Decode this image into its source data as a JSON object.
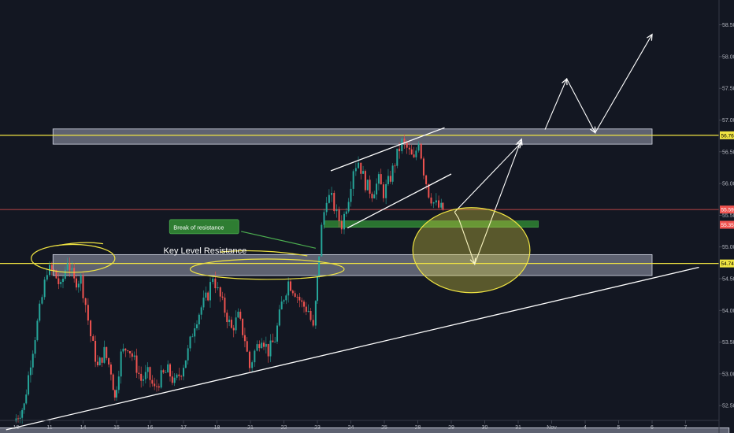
{
  "chart_data": {
    "type": "candlestick",
    "title": "",
    "xlabel": "",
    "ylabel": "",
    "ylim": [
      52.0,
      58.8
    ],
    "grid": false,
    "x_ticks": [
      "10",
      "11",
      "14",
      "15",
      "16",
      "17",
      "18",
      "21",
      "22",
      "23",
      "24",
      "25",
      "28",
      "29",
      "30",
      "31",
      "Nov",
      "4",
      "5",
      "6",
      "7"
    ],
    "x_tick_days": [
      -0.5,
      0.5,
      1.5,
      2.5,
      3.5,
      4.5,
      5.5,
      6.5,
      7.5,
      8.5,
      9.5,
      10.5,
      11.5,
      12.5,
      13.5,
      14.5,
      15.5,
      16.5,
      17.5,
      18.5,
      19.5
    ],
    "y_ticks": [
      52.0,
      52.5,
      53.0,
      53.5,
      54.0,
      54.5,
      55.0,
      55.5,
      56.0,
      56.5,
      57.0,
      57.5,
      58.0,
      58.5
    ],
    "y_tick_labels": [
      "52.00",
      "52.50",
      "53.00",
      "53.50",
      "54.00",
      "54.50",
      "55.00",
      "55.50",
      "56.00",
      "56.50",
      "57.00",
      "57.50",
      "58.00",
      "58.50"
    ],
    "price_labels": [
      {
        "value": 56.76,
        "text": "56.76",
        "bg": "#f0e442",
        "color": "#000000"
      },
      {
        "value": 55.59,
        "text": "55.59",
        "bg": "#ef5350",
        "color": "#ffffff"
      },
      {
        "value": 55.35,
        "text": "55.35",
        "bg": "#ef5350",
        "color": "#ffffff"
      },
      {
        "value": 54.74,
        "text": "54.74",
        "bg": "#f0e442",
        "color": "#000000"
      }
    ],
    "closes": [
      {
        "day": -0.5,
        "close": 52.25
      },
      {
        "day": -0.2,
        "close": 52.5
      },
      {
        "day": 0.0,
        "close": 53.2
      },
      {
        "day": 0.2,
        "close": 53.8
      },
      {
        "day": 0.35,
        "close": 54.2
      },
      {
        "day": 0.5,
        "close": 54.65
      },
      {
        "day": 0.7,
        "close": 54.6
      },
      {
        "day": 0.9,
        "close": 54.35
      },
      {
        "day": 1.1,
        "close": 54.8
      },
      {
        "day": 1.3,
        "close": 54.45
      },
      {
        "day": 1.5,
        "close": 54.5
      },
      {
        "day": 1.65,
        "close": 54.1
      },
      {
        "day": 1.8,
        "close": 53.6
      },
      {
        "day": 2.0,
        "close": 53.1
      },
      {
        "day": 2.2,
        "close": 53.35
      },
      {
        "day": 2.4,
        "close": 53.05
      },
      {
        "day": 2.5,
        "close": 52.6
      },
      {
        "day": 2.7,
        "close": 53.3
      },
      {
        "day": 2.9,
        "close": 53.45
      },
      {
        "day": 3.1,
        "close": 53.2
      },
      {
        "day": 3.3,
        "close": 52.9
      },
      {
        "day": 3.5,
        "close": 53.0
      },
      {
        "day": 3.7,
        "close": 52.75
      },
      {
        "day": 3.9,
        "close": 52.95
      },
      {
        "day": 4.1,
        "close": 53.05
      },
      {
        "day": 4.3,
        "close": 52.85
      },
      {
        "day": 4.5,
        "close": 53.05
      },
      {
        "day": 4.7,
        "close": 53.35
      },
      {
        "day": 4.9,
        "close": 53.8
      },
      {
        "day": 5.1,
        "close": 54.05
      },
      {
        "day": 5.3,
        "close": 54.25
      },
      {
        "day": 5.45,
        "close": 54.55
      },
      {
        "day": 5.6,
        "close": 54.3
      },
      {
        "day": 5.8,
        "close": 54.0
      },
      {
        "day": 6.0,
        "close": 53.7
      },
      {
        "day": 6.2,
        "close": 53.9
      },
      {
        "day": 6.4,
        "close": 53.55
      },
      {
        "day": 6.55,
        "close": 53.1
      },
      {
        "day": 6.7,
        "close": 53.35
      },
      {
        "day": 6.9,
        "close": 53.6
      },
      {
        "day": 7.1,
        "close": 53.35
      },
      {
        "day": 7.3,
        "close": 53.55
      },
      {
        "day": 7.5,
        "close": 54.1
      },
      {
        "day": 7.7,
        "close": 54.45
      },
      {
        "day": 7.9,
        "close": 54.3
      },
      {
        "day": 8.1,
        "close": 54.1
      },
      {
        "day": 8.3,
        "close": 54.0
      },
      {
        "day": 8.45,
        "close": 53.7
      },
      {
        "day": 8.55,
        "close": 54.5
      },
      {
        "day": 8.7,
        "close": 55.3
      },
      {
        "day": 8.85,
        "close": 55.8
      },
      {
        "day": 9.0,
        "close": 55.75
      },
      {
        "day": 9.15,
        "close": 55.5
      },
      {
        "day": 9.3,
        "close": 55.35
      },
      {
        "day": 9.5,
        "close": 55.8
      },
      {
        "day": 9.65,
        "close": 56.25
      },
      {
        "day": 9.8,
        "close": 56.35
      },
      {
        "day": 10.0,
        "close": 56.0
      },
      {
        "day": 10.2,
        "close": 55.85
      },
      {
        "day": 10.4,
        "close": 56.05
      },
      {
        "day": 10.55,
        "close": 55.85
      },
      {
        "day": 10.75,
        "close": 56.1
      },
      {
        "day": 10.95,
        "close": 56.45
      },
      {
        "day": 11.1,
        "close": 56.65
      },
      {
        "day": 11.25,
        "close": 56.55
      },
      {
        "day": 11.45,
        "close": 56.35
      },
      {
        "day": 11.6,
        "close": 56.7
      },
      {
        "day": 11.75,
        "close": 56.2
      },
      {
        "day": 11.9,
        "close": 55.85
      },
      {
        "day": 12.05,
        "close": 55.7
      },
      {
        "day": 12.2,
        "close": 55.62
      },
      {
        "day": 12.3,
        "close": 55.59
      }
    ],
    "zones": [
      {
        "name": "upper resistance zone",
        "day0": 0.6,
        "day1": 18.5,
        "y0": 56.62,
        "y1": 56.86
      },
      {
        "name": "key level resistance zone",
        "day0": 0.6,
        "day1": 18.5,
        "y0": 54.55,
        "y1": 54.88
      },
      {
        "name": "breakout support zone",
        "day0": 8.7,
        "day1": 15.1,
        "y0": 55.31,
        "y1": 55.41,
        "color": "#2e7d32"
      },
      {
        "name": "bottom band",
        "day0": -1.0,
        "day1": 20.8,
        "y0": 52.05,
        "y1": 52.15
      }
    ],
    "horizontal_lines": [
      {
        "value": 56.76,
        "color": "#f0e442"
      },
      {
        "value": 54.74,
        "color": "#f0e442"
      },
      {
        "value": 55.59,
        "color": "#ef5350",
        "dashed": true
      }
    ],
    "trendlines": [
      {
        "points": [
          [
            -0.8,
            52.12
          ],
          [
            19.9,
            54.68
          ]
        ],
        "color": "#ffffff"
      },
      {
        "points": [
          [
            8.9,
            56.2
          ],
          [
            12.3,
            56.88
          ]
        ],
        "color": "#ffffff"
      },
      {
        "points": [
          [
            9.4,
            55.3
          ],
          [
            12.5,
            56.15
          ]
        ],
        "color": "#ffffff"
      }
    ],
    "projection_path": [
      [
        12.6,
        55.55
      ],
      [
        12.72,
        55.45
      ],
      [
        13.2,
        54.73
      ],
      [
        14.6,
        56.7
      ]
    ],
    "projection_arrow_2": [
      [
        12.6,
        55.55
      ],
      [
        14.6,
        56.65
      ]
    ],
    "projection_path_3": [
      [
        15.3,
        56.85
      ],
      [
        15.95,
        57.65
      ],
      [
        16.8,
        56.8
      ],
      [
        18.5,
        58.35
      ]
    ],
    "ellipses": [
      {
        "name": "bottom target ellipse",
        "cx_day": 13.1,
        "cy": 54.95,
        "rx_day": 1.75,
        "ry": 0.67,
        "color": "#f0e442",
        "fill": true
      },
      {
        "name": "swing high circle 1",
        "cx_day": 1.2,
        "cy": 54.82,
        "rx_day": 1.25,
        "ry": 0.22,
        "color": "#f0e442",
        "fill": false
      },
      {
        "name": "swing high circle 2",
        "cx_day": 7.0,
        "cy": 54.65,
        "rx_day": 2.3,
        "ry": 0.16,
        "color": "#f0e442",
        "fill": false
      }
    ],
    "annotations": [
      {
        "text": "Break of resistance",
        "day": 4.2,
        "value": 55.32,
        "box_color": "#2e7d32",
        "arrow_to": [
          8.45,
          54.98
        ]
      },
      {
        "text": "Key Level Resistance",
        "day": 3.9,
        "value": 54.94
      }
    ]
  }
}
